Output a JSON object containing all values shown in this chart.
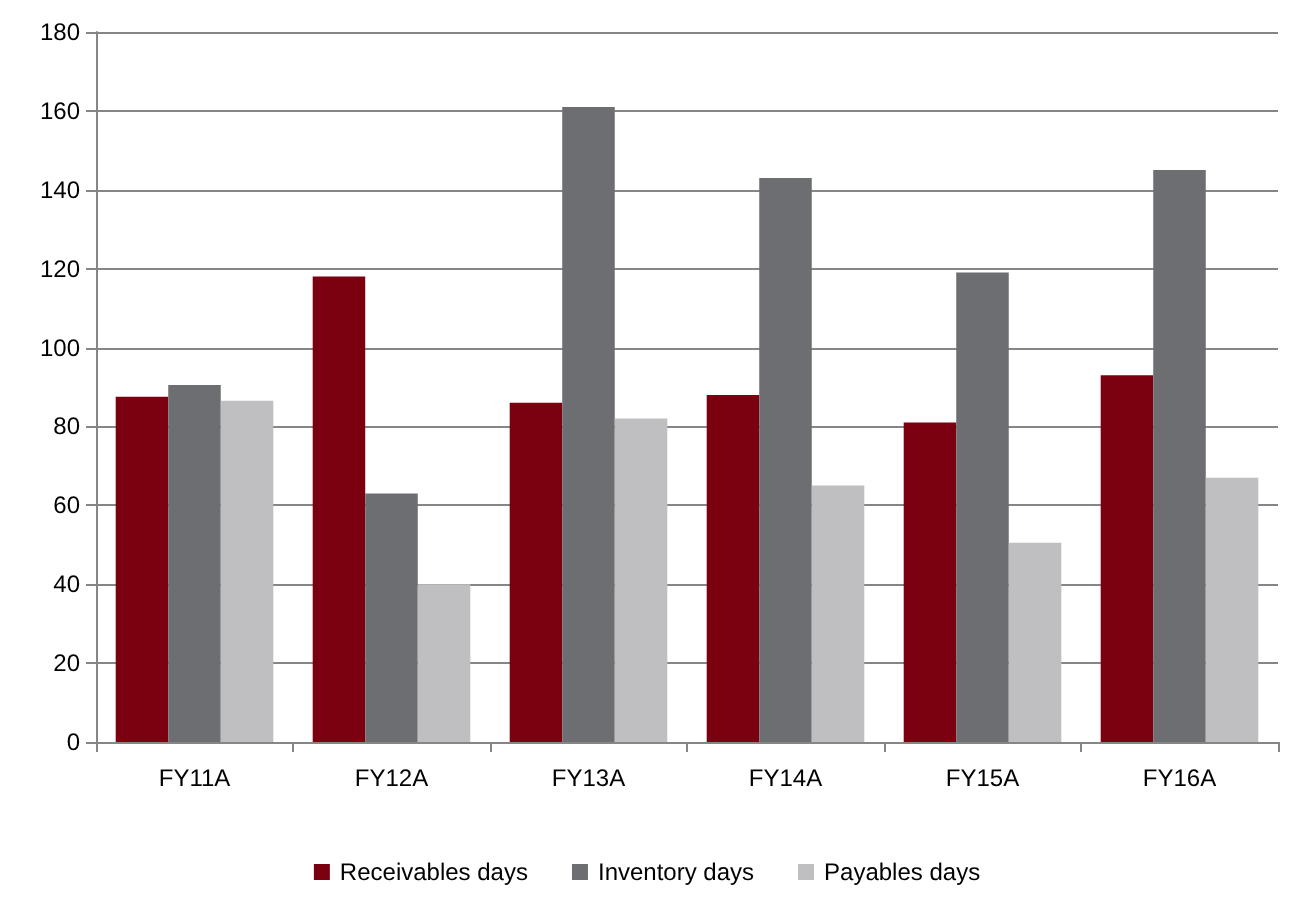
{
  "chart_data": {
    "type": "bar",
    "categories": [
      "FY11A",
      "FY12A",
      "FY13A",
      "FY14A",
      "FY15A",
      "FY16A"
    ],
    "series": [
      {
        "name": "Receivables days",
        "color": "#7b0010",
        "values": [
          87.5,
          118,
          86,
          88,
          81,
          93
        ]
      },
      {
        "name": "Inventory days",
        "color": "#6d6e71",
        "values": [
          90.5,
          63,
          161,
          143,
          119,
          145
        ]
      },
      {
        "name": "Payables days",
        "color": "#bfbfc1",
        "values": [
          86.5,
          40,
          82,
          65,
          50.5,
          67
        ]
      }
    ],
    "ylim": [
      0,
      180
    ],
    "yticks": [
      0,
      20,
      40,
      60,
      80,
      100,
      120,
      140,
      160,
      180
    ],
    "grid": "y",
    "legend": "bottom"
  }
}
